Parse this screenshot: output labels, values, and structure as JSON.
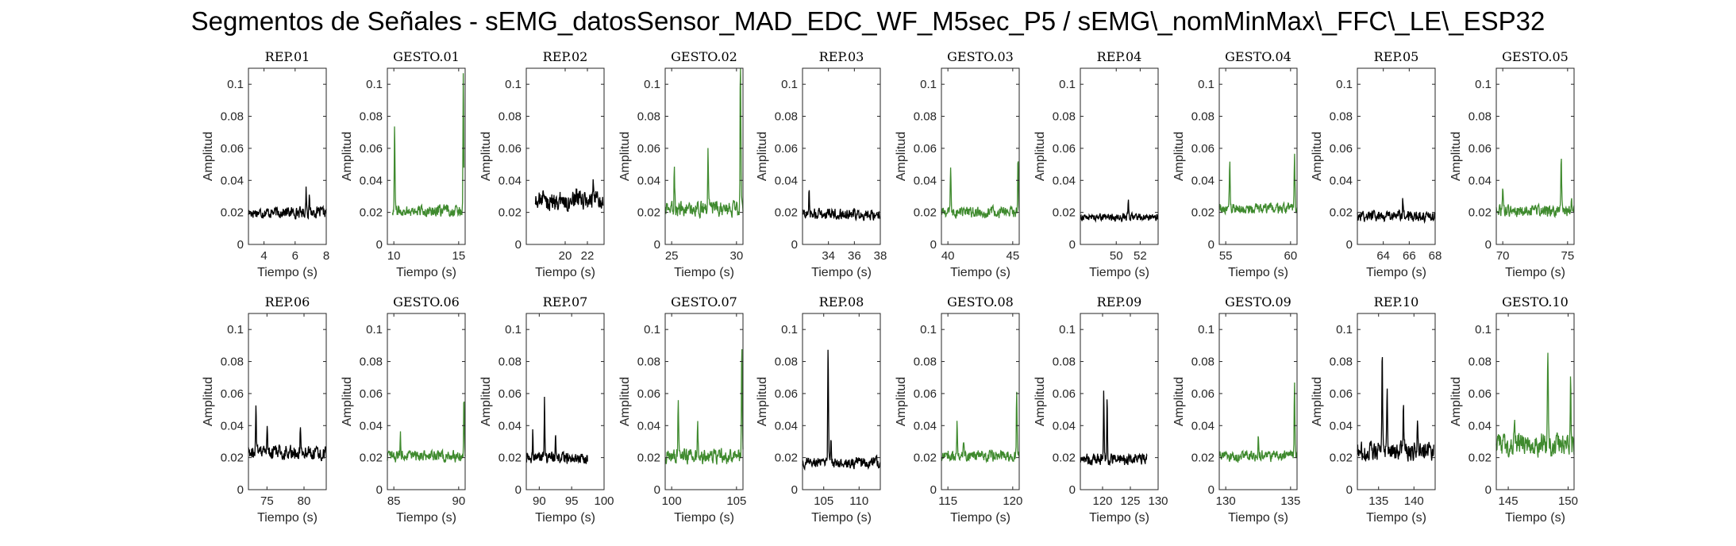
{
  "title": "Segmentos de Señales - sEMG_datosSensor_MAD_EDC_WF_M5sec_P5 / sEMG\\_nomMinMax\\_FFC\\_LE\\_ESP32",
  "colors": {
    "rep": "#000000",
    "gesto": "#3f8a2e",
    "axes": "#262626"
  },
  "chart_data": [
    {
      "type": "line",
      "title": "REP_01",
      "xlabel": "Tiempo (s)",
      "ylabel": "Amplitud",
      "xlim": [
        3,
        8
      ],
      "ylim": [
        0,
        0.11
      ],
      "xticks": [
        4,
        6,
        8
      ],
      "yticks": [
        0,
        0.02,
        0.04,
        0.06,
        0.08,
        0.1
      ],
      "kind": "rep",
      "x_range": [
        3,
        8
      ],
      "base": 0.02,
      "noise": 0.003,
      "peaks": [
        [
          6.7,
          0.032
        ],
        [
          6.9,
          0.027
        ]
      ]
    },
    {
      "type": "line",
      "title": "GESTO_01",
      "xlabel": "Tiempo (s)",
      "ylabel": "Amplitud",
      "xlim": [
        9.5,
        15.5
      ],
      "ylim": [
        0,
        0.11
      ],
      "xticks": [
        10,
        15
      ],
      "yticks": [
        0,
        0.02,
        0.04,
        0.06,
        0.08,
        0.1
      ],
      "kind": "gesto",
      "x_range": [
        9.9,
        15.4
      ],
      "base": 0.021,
      "noise": 0.003,
      "peaks": [
        [
          10.05,
          0.067
        ],
        [
          15.35,
          0.091
        ]
      ]
    },
    {
      "type": "line",
      "title": "REP_02",
      "xlabel": "Tiempo (s)",
      "ylabel": "Amplitud",
      "xlim": [
        16.5,
        23.5
      ],
      "ylim": [
        0,
        0.11
      ],
      "xticks": [
        20,
        22
      ],
      "yticks": [
        0,
        0.02,
        0.04,
        0.06,
        0.08,
        0.1
      ],
      "kind": "rep",
      "x_range": [
        17.3,
        23.4
      ],
      "base": 0.027,
      "noise": 0.005,
      "peaks": [
        [
          18,
          0.036
        ],
        [
          21,
          0.037
        ],
        [
          22.5,
          0.036
        ]
      ]
    },
    {
      "type": "line",
      "title": "GESTO_02",
      "xlabel": "Tiempo (s)",
      "ylabel": "Amplitud",
      "xlim": [
        24.5,
        30.5
      ],
      "ylim": [
        0,
        0.11
      ],
      "xticks": [
        25,
        30
      ],
      "yticks": [
        0,
        0.02,
        0.04,
        0.06,
        0.08,
        0.1
      ],
      "kind": "gesto",
      "x_range": [
        24.5,
        30.5
      ],
      "base": 0.022,
      "noise": 0.004,
      "peaks": [
        [
          25.2,
          0.044
        ],
        [
          27.8,
          0.054
        ],
        [
          30.3,
          0.11
        ]
      ]
    },
    {
      "type": "line",
      "title": "REP_03",
      "xlabel": "Tiempo (s)",
      "ylabel": "Amplitud",
      "xlim": [
        32,
        38
      ],
      "ylim": [
        0,
        0.11
      ],
      "xticks": [
        34,
        36,
        38
      ],
      "yticks": [
        0,
        0.02,
        0.04,
        0.06,
        0.08,
        0.1
      ],
      "kind": "rep",
      "x_range": [
        32,
        38
      ],
      "base": 0.019,
      "noise": 0.003,
      "peaks": [
        [
          32.5,
          0.033
        ]
      ]
    },
    {
      "type": "line",
      "title": "GESTO_03",
      "xlabel": "Tiempo (s)",
      "ylabel": "Amplitud",
      "xlim": [
        39.5,
        45.5
      ],
      "ylim": [
        0,
        0.11
      ],
      "xticks": [
        40,
        45
      ],
      "yticks": [
        0,
        0.02,
        0.04,
        0.06,
        0.08,
        0.1
      ],
      "kind": "gesto",
      "x_range": [
        39.5,
        45.5
      ],
      "base": 0.02,
      "noise": 0.003,
      "peaks": [
        [
          40.2,
          0.043
        ],
        [
          45.4,
          0.048
        ]
      ]
    },
    {
      "type": "line",
      "title": "REP_04",
      "xlabel": "Tiempo (s)",
      "ylabel": "Amplitud",
      "xlim": [
        47,
        53.5
      ],
      "ylim": [
        0,
        0.11
      ],
      "xticks": [
        50,
        52
      ],
      "yticks": [
        0,
        0.02,
        0.04,
        0.06,
        0.08,
        0.1
      ],
      "kind": "rep",
      "x_range": [
        47,
        53.5
      ],
      "base": 0.017,
      "noise": 0.002,
      "peaks": [
        [
          51,
          0.025
        ]
      ]
    },
    {
      "type": "line",
      "title": "GESTO_04",
      "xlabel": "Tiempo (s)",
      "ylabel": "Amplitud",
      "xlim": [
        54.5,
        60.5
      ],
      "ylim": [
        0,
        0.11
      ],
      "xticks": [
        55,
        60
      ],
      "yticks": [
        0,
        0.02,
        0.04,
        0.06,
        0.08,
        0.1
      ],
      "kind": "gesto",
      "x_range": [
        54.5,
        60.5
      ],
      "base": 0.022,
      "noise": 0.003,
      "peaks": [
        [
          55.3,
          0.046
        ],
        [
          60.3,
          0.051
        ]
      ]
    },
    {
      "type": "line",
      "title": "REP_05",
      "xlabel": "Tiempo (s)",
      "ylabel": "Amplitud",
      "xlim": [
        62,
        68
      ],
      "ylim": [
        0,
        0.11
      ],
      "xticks": [
        64,
        66,
        68
      ],
      "yticks": [
        0,
        0.02,
        0.04,
        0.06,
        0.08,
        0.1
      ],
      "kind": "rep",
      "x_range": [
        62,
        68
      ],
      "base": 0.018,
      "noise": 0.003,
      "peaks": [
        [
          65.5,
          0.027
        ]
      ]
    },
    {
      "type": "line",
      "title": "GESTO_05",
      "xlabel": "Tiempo (s)",
      "ylabel": "Amplitud",
      "xlim": [
        69.5,
        75.5
      ],
      "ylim": [
        0,
        0.11
      ],
      "xticks": [
        70,
        75
      ],
      "yticks": [
        0,
        0.02,
        0.04,
        0.06,
        0.08,
        0.1
      ],
      "kind": "gesto",
      "x_range": [
        69.5,
        75.5
      ],
      "base": 0.021,
      "noise": 0.003,
      "peaks": [
        [
          70,
          0.031
        ],
        [
          74.5,
          0.047
        ],
        [
          75.3,
          0.03
        ]
      ]
    },
    {
      "type": "line",
      "title": "REP_06",
      "xlabel": "Tiempo (s)",
      "ylabel": "Amplitud",
      "xlim": [
        72.5,
        83
      ],
      "ylim": [
        0,
        0.11
      ],
      "xticks": [
        75,
        80
      ],
      "yticks": [
        0,
        0.02,
        0.04,
        0.06,
        0.08,
        0.1
      ],
      "kind": "rep",
      "x_range": [
        72.5,
        83
      ],
      "base": 0.023,
      "noise": 0.004,
      "peaks": [
        [
          73.5,
          0.047
        ],
        [
          75,
          0.038
        ],
        [
          79.5,
          0.034
        ]
      ]
    },
    {
      "type": "line",
      "title": "GESTO_06",
      "xlabel": "Tiempo (s)",
      "ylabel": "Amplitud",
      "xlim": [
        84.5,
        90.5
      ],
      "ylim": [
        0,
        0.11
      ],
      "xticks": [
        85,
        90
      ],
      "yticks": [
        0,
        0.02,
        0.04,
        0.06,
        0.08,
        0.1
      ],
      "kind": "gesto",
      "x_range": [
        84.5,
        90.5
      ],
      "base": 0.021,
      "noise": 0.003,
      "peaks": [
        [
          85.5,
          0.032
        ],
        [
          90.4,
          0.052
        ]
      ]
    },
    {
      "type": "line",
      "title": "REP_07",
      "xlabel": "Tiempo (s)",
      "ylabel": "Amplitud",
      "xlim": [
        88,
        100
      ],
      "ylim": [
        0,
        0.11
      ],
      "xticks": [
        90,
        95,
        100
      ],
      "yticks": [
        0,
        0.02,
        0.04,
        0.06,
        0.08,
        0.1
      ],
      "kind": "rep",
      "x_range": [
        88,
        97.5
      ],
      "base": 0.02,
      "noise": 0.003,
      "peaks": [
        [
          89,
          0.033
        ],
        [
          90.8,
          0.051
        ],
        [
          92.5,
          0.03
        ]
      ]
    },
    {
      "type": "line",
      "title": "GESTO_07",
      "xlabel": "Tiempo (s)",
      "ylabel": "Amplitud",
      "xlim": [
        99.5,
        105.5
      ],
      "ylim": [
        0,
        0.11
      ],
      "xticks": [
        100,
        105
      ],
      "yticks": [
        0,
        0.02,
        0.04,
        0.06,
        0.08,
        0.1
      ],
      "kind": "gesto",
      "x_range": [
        99.5,
        105.5
      ],
      "base": 0.021,
      "noise": 0.004,
      "peaks": [
        [
          100.5,
          0.047
        ],
        [
          102,
          0.036
        ],
        [
          105.4,
          0.078
        ]
      ]
    },
    {
      "type": "line",
      "title": "REP_08",
      "xlabel": "Tiempo (s)",
      "ylabel": "Amplitud",
      "xlim": [
        102,
        113
      ],
      "ylim": [
        0,
        0.11
      ],
      "xticks": [
        105,
        110
      ],
      "yticks": [
        0,
        0.02,
        0.04,
        0.06,
        0.08,
        0.1
      ],
      "kind": "rep",
      "x_range": [
        102,
        113
      ],
      "base": 0.017,
      "noise": 0.003,
      "peaks": [
        [
          105.6,
          0.078
        ],
        [
          106,
          0.03
        ]
      ]
    },
    {
      "type": "line",
      "title": "GESTO_08",
      "xlabel": "Tiempo (s)",
      "ylabel": "Amplitud",
      "xlim": [
        114.5,
        120.5
      ],
      "ylim": [
        0,
        0.11
      ],
      "xticks": [
        115,
        120
      ],
      "yticks": [
        0,
        0.02,
        0.04,
        0.06,
        0.08,
        0.1
      ],
      "kind": "gesto",
      "x_range": [
        114.5,
        120.5
      ],
      "base": 0.021,
      "noise": 0.003,
      "peaks": [
        [
          115.7,
          0.04
        ],
        [
          116.2,
          0.03
        ],
        [
          120.3,
          0.055
        ]
      ]
    },
    {
      "type": "line",
      "title": "REP_09",
      "xlabel": "Tiempo (s)",
      "ylabel": "Amplitud",
      "xlim": [
        116,
        130
      ],
      "ylim": [
        0,
        0.11
      ],
      "xticks": [
        120,
        125,
        130
      ],
      "yticks": [
        0,
        0.02,
        0.04,
        0.06,
        0.08,
        0.1
      ],
      "kind": "rep",
      "x_range": [
        116,
        128
      ],
      "base": 0.019,
      "noise": 0.003,
      "peaks": [
        [
          120.2,
          0.055
        ],
        [
          120.8,
          0.052
        ]
      ]
    },
    {
      "type": "line",
      "title": "GESTO_09",
      "xlabel": "Tiempo (s)",
      "ylabel": "Amplitud",
      "xlim": [
        129.5,
        135.5
      ],
      "ylim": [
        0,
        0.11
      ],
      "xticks": [
        130,
        135
      ],
      "yticks": [
        0,
        0.02,
        0.04,
        0.06,
        0.08,
        0.1
      ],
      "kind": "gesto",
      "x_range": [
        129.5,
        135.5
      ],
      "base": 0.021,
      "noise": 0.003,
      "peaks": [
        [
          132.5,
          0.03
        ],
        [
          135.3,
          0.056
        ]
      ]
    },
    {
      "type": "line",
      "title": "REP_10",
      "xlabel": "Tiempo (s)",
      "ylabel": "Amplitud",
      "xlim": [
        132,
        143
      ],
      "ylim": [
        0,
        0.11
      ],
      "xticks": [
        135,
        140
      ],
      "yticks": [
        0,
        0.02,
        0.04,
        0.06,
        0.08,
        0.1
      ],
      "kind": "rep",
      "x_range": [
        132,
        142.8
      ],
      "base": 0.024,
      "noise": 0.005,
      "peaks": [
        [
          135.5,
          0.075
        ],
        [
          136.2,
          0.058
        ],
        [
          138.5,
          0.045
        ],
        [
          140.5,
          0.044
        ]
      ]
    },
    {
      "type": "line",
      "title": "GESTO_10",
      "xlabel": "Tiempo (s)",
      "ylabel": "Amplitud",
      "xlim": [
        144,
        150.5
      ],
      "ylim": [
        0,
        0.11
      ],
      "xticks": [
        145,
        150
      ],
      "yticks": [
        0,
        0.02,
        0.04,
        0.06,
        0.08,
        0.1
      ],
      "kind": "gesto",
      "x_range": [
        144,
        150.5
      ],
      "base": 0.028,
      "noise": 0.006,
      "peaks": [
        [
          145.5,
          0.043
        ],
        [
          148.3,
          0.081
        ],
        [
          150.2,
          0.062
        ]
      ]
    }
  ]
}
